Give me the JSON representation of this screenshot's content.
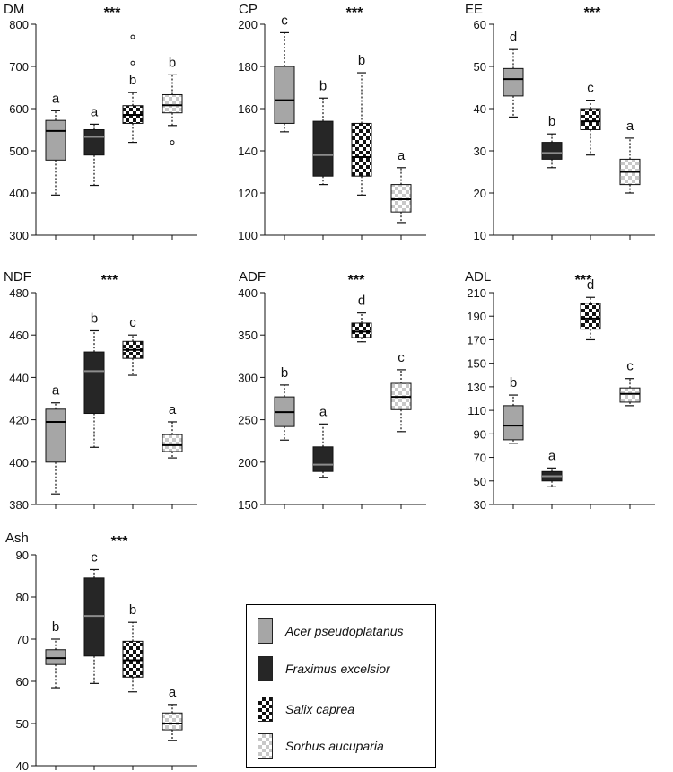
{
  "species": [
    {
      "name": "Acer pseudoplatanus",
      "pattern": "gray"
    },
    {
      "name": "Fraximus excelsior",
      "pattern": "black"
    },
    {
      "name": "Salix caprea",
      "pattern": "checker-dark"
    },
    {
      "name": "Sorbus aucuparia",
      "pattern": "checker-light"
    }
  ],
  "colors": {
    "gray_fill": "#a6a6a6",
    "black_fill": "#262626",
    "checker_dark": "#111111",
    "checker_light": "#c8c8c8"
  },
  "chart_data": [
    {
      "type": "box",
      "title": "DM",
      "significance": "***",
      "ylim": [
        300,
        800
      ],
      "yticks": [
        "300",
        "400",
        "500",
        "600",
        "700",
        "800"
      ],
      "series": [
        {
          "name": "Acer pseudoplatanus",
          "whisker_low": 395,
          "q1": 478,
          "median": 547,
          "q3": 572,
          "whisker_high": 595,
          "outliers": [],
          "letter": "a"
        },
        {
          "name": "Fraximus excelsior",
          "whisker_low": 418,
          "q1": 490,
          "median": 533,
          "q3": 550,
          "whisker_high": 563,
          "outliers": [],
          "letter": "a"
        },
        {
          "name": "Salix caprea",
          "whisker_low": 520,
          "q1": 565,
          "median": 585,
          "q3": 607,
          "whisker_high": 638,
          "outliers": [
            708,
            770
          ],
          "letter": "b"
        },
        {
          "name": "Sorbus aucuparia",
          "whisker_low": 560,
          "q1": 590,
          "median": 608,
          "q3": 633,
          "whisker_high": 680,
          "outliers": [
            520
          ],
          "letter": "b"
        }
      ]
    },
    {
      "type": "box",
      "title": "CP",
      "significance": "***",
      "ylim": [
        100,
        200
      ],
      "yticks": [
        "100",
        "120",
        "140",
        "160",
        "180",
        "200"
      ],
      "series": [
        {
          "name": "Acer pseudoplatanus",
          "whisker_low": 149,
          "q1": 153,
          "median": 164,
          "q3": 180,
          "whisker_high": 196,
          "outliers": [],
          "letter": "c"
        },
        {
          "name": "Fraximus excelsior",
          "whisker_low": 124,
          "q1": 128,
          "median": 138,
          "q3": 154,
          "whisker_high": 165,
          "outliers": [],
          "letter": "b"
        },
        {
          "name": "Salix caprea",
          "whisker_low": 119,
          "q1": 128,
          "median": 137,
          "q3": 153,
          "whisker_high": 177,
          "outliers": [],
          "letter": "b"
        },
        {
          "name": "Sorbus aucuparia",
          "whisker_low": 106,
          "q1": 111,
          "median": 117,
          "q3": 124,
          "whisker_high": 132,
          "outliers": [],
          "letter": "a"
        }
      ]
    },
    {
      "type": "box",
      "title": "EE",
      "significance": "***",
      "ylim": [
        10,
        60
      ],
      "yticks": [
        "10",
        "20",
        "30",
        "40",
        "50",
        "60"
      ],
      "series": [
        {
          "name": "Acer pseudoplatanus",
          "whisker_low": 38,
          "q1": 43,
          "median": 47,
          "q3": 49.5,
          "whisker_high": 54,
          "outliers": [],
          "letter": "d"
        },
        {
          "name": "Fraximus excelsior",
          "whisker_low": 26,
          "q1": 28,
          "median": 29.5,
          "q3": 32,
          "whisker_high": 34,
          "outliers": [],
          "letter": "b"
        },
        {
          "name": "Salix caprea",
          "whisker_low": 29,
          "q1": 35,
          "median": 37,
          "q3": 40,
          "whisker_high": 42,
          "outliers": [],
          "letter": "c"
        },
        {
          "name": "Sorbus aucuparia",
          "whisker_low": 20,
          "q1": 22,
          "median": 25,
          "q3": 28,
          "whisker_high": 33,
          "outliers": [],
          "letter": "a"
        }
      ]
    },
    {
      "type": "box",
      "title": "NDF",
      "significance": "***",
      "ylim": [
        380,
        480
      ],
      "yticks": [
        "380",
        "400",
        "420",
        "440",
        "460",
        "480"
      ],
      "series": [
        {
          "name": "Acer pseudoplatanus",
          "whisker_low": 385,
          "q1": 400,
          "median": 419,
          "q3": 425,
          "whisker_high": 428,
          "outliers": [],
          "letter": "a"
        },
        {
          "name": "Fraximus excelsior",
          "whisker_low": 407,
          "q1": 423,
          "median": 443,
          "q3": 452,
          "whisker_high": 462,
          "outliers": [],
          "letter": "b"
        },
        {
          "name": "Salix caprea",
          "whisker_low": 441,
          "q1": 449,
          "median": 453,
          "q3": 457,
          "whisker_high": 460,
          "outliers": [],
          "letter": "c"
        },
        {
          "name": "Sorbus aucuparia",
          "whisker_low": 402,
          "q1": 405,
          "median": 408,
          "q3": 413,
          "whisker_high": 419,
          "outliers": [],
          "letter": "a"
        }
      ]
    },
    {
      "type": "box",
      "title": "ADF",
      "significance": "***",
      "ylim": [
        150,
        400
      ],
      "yticks": [
        "150",
        "200",
        "250",
        "300",
        "350",
        "400"
      ],
      "series": [
        {
          "name": "Acer pseudoplatanus",
          "whisker_low": 226,
          "q1": 242,
          "median": 259,
          "q3": 277,
          "whisker_high": 291,
          "outliers": [],
          "letter": "b"
        },
        {
          "name": "Fraximus excelsior",
          "whisker_low": 182,
          "q1": 189,
          "median": 197,
          "q3": 218,
          "whisker_high": 245,
          "outliers": [],
          "letter": "a"
        },
        {
          "name": "Salix caprea",
          "whisker_low": 342,
          "q1": 347,
          "median": 354,
          "q3": 364,
          "whisker_high": 376,
          "outliers": [],
          "letter": "d"
        },
        {
          "name": "Sorbus aucuparia",
          "whisker_low": 236,
          "q1": 262,
          "median": 277,
          "q3": 293,
          "whisker_high": 309,
          "outliers": [],
          "letter": "c"
        }
      ]
    },
    {
      "type": "box",
      "title": "ADL",
      "significance": "***",
      "ylim": [
        30,
        210
      ],
      "yticks": [
        "30",
        "50",
        "70",
        "90",
        "110",
        "130",
        "150",
        "170",
        "190",
        "210"
      ],
      "series": [
        {
          "name": "Acer pseudoplatanus",
          "whisker_low": 82,
          "q1": 85,
          "median": 97,
          "q3": 114,
          "whisker_high": 123,
          "outliers": [],
          "letter": "b"
        },
        {
          "name": "Fraximus excelsior",
          "whisker_low": 45,
          "q1": 50,
          "median": 54,
          "q3": 58,
          "whisker_high": 61,
          "outliers": [],
          "letter": "a"
        },
        {
          "name": "Salix caprea",
          "whisker_low": 170,
          "q1": 179,
          "median": 188,
          "q3": 201,
          "whisker_high": 206,
          "outliers": [],
          "letter": "d"
        },
        {
          "name": "Sorbus aucuparia",
          "whisker_low": 114,
          "q1": 117,
          "median": 124,
          "q3": 129,
          "whisker_high": 137,
          "outliers": [],
          "letter": "c"
        }
      ]
    },
    {
      "type": "box",
      "title": "Ash",
      "significance": "***",
      "ylim": [
        40,
        90
      ],
      "yticks": [
        "40",
        "50",
        "60",
        "70",
        "80",
        "90"
      ],
      "series": [
        {
          "name": "Acer pseudoplatanus",
          "whisker_low": 58.5,
          "q1": 64,
          "median": 65.5,
          "q3": 67.5,
          "whisker_high": 70,
          "outliers": [],
          "letter": "b"
        },
        {
          "name": "Fraximus excelsior",
          "whisker_low": 59.5,
          "q1": 66,
          "median": 75.5,
          "q3": 84.5,
          "whisker_high": 86.5,
          "outliers": [],
          "letter": "c"
        },
        {
          "name": "Salix caprea",
          "whisker_low": 57.5,
          "q1": 61,
          "median": 65,
          "q3": 69.5,
          "whisker_high": 74,
          "outliers": [],
          "letter": "b"
        },
        {
          "name": "Sorbus aucuparia",
          "whisker_low": 46,
          "q1": 48.5,
          "median": 50,
          "q3": 52.5,
          "whisker_high": 54.5,
          "outliers": [],
          "letter": "a"
        }
      ]
    }
  ]
}
